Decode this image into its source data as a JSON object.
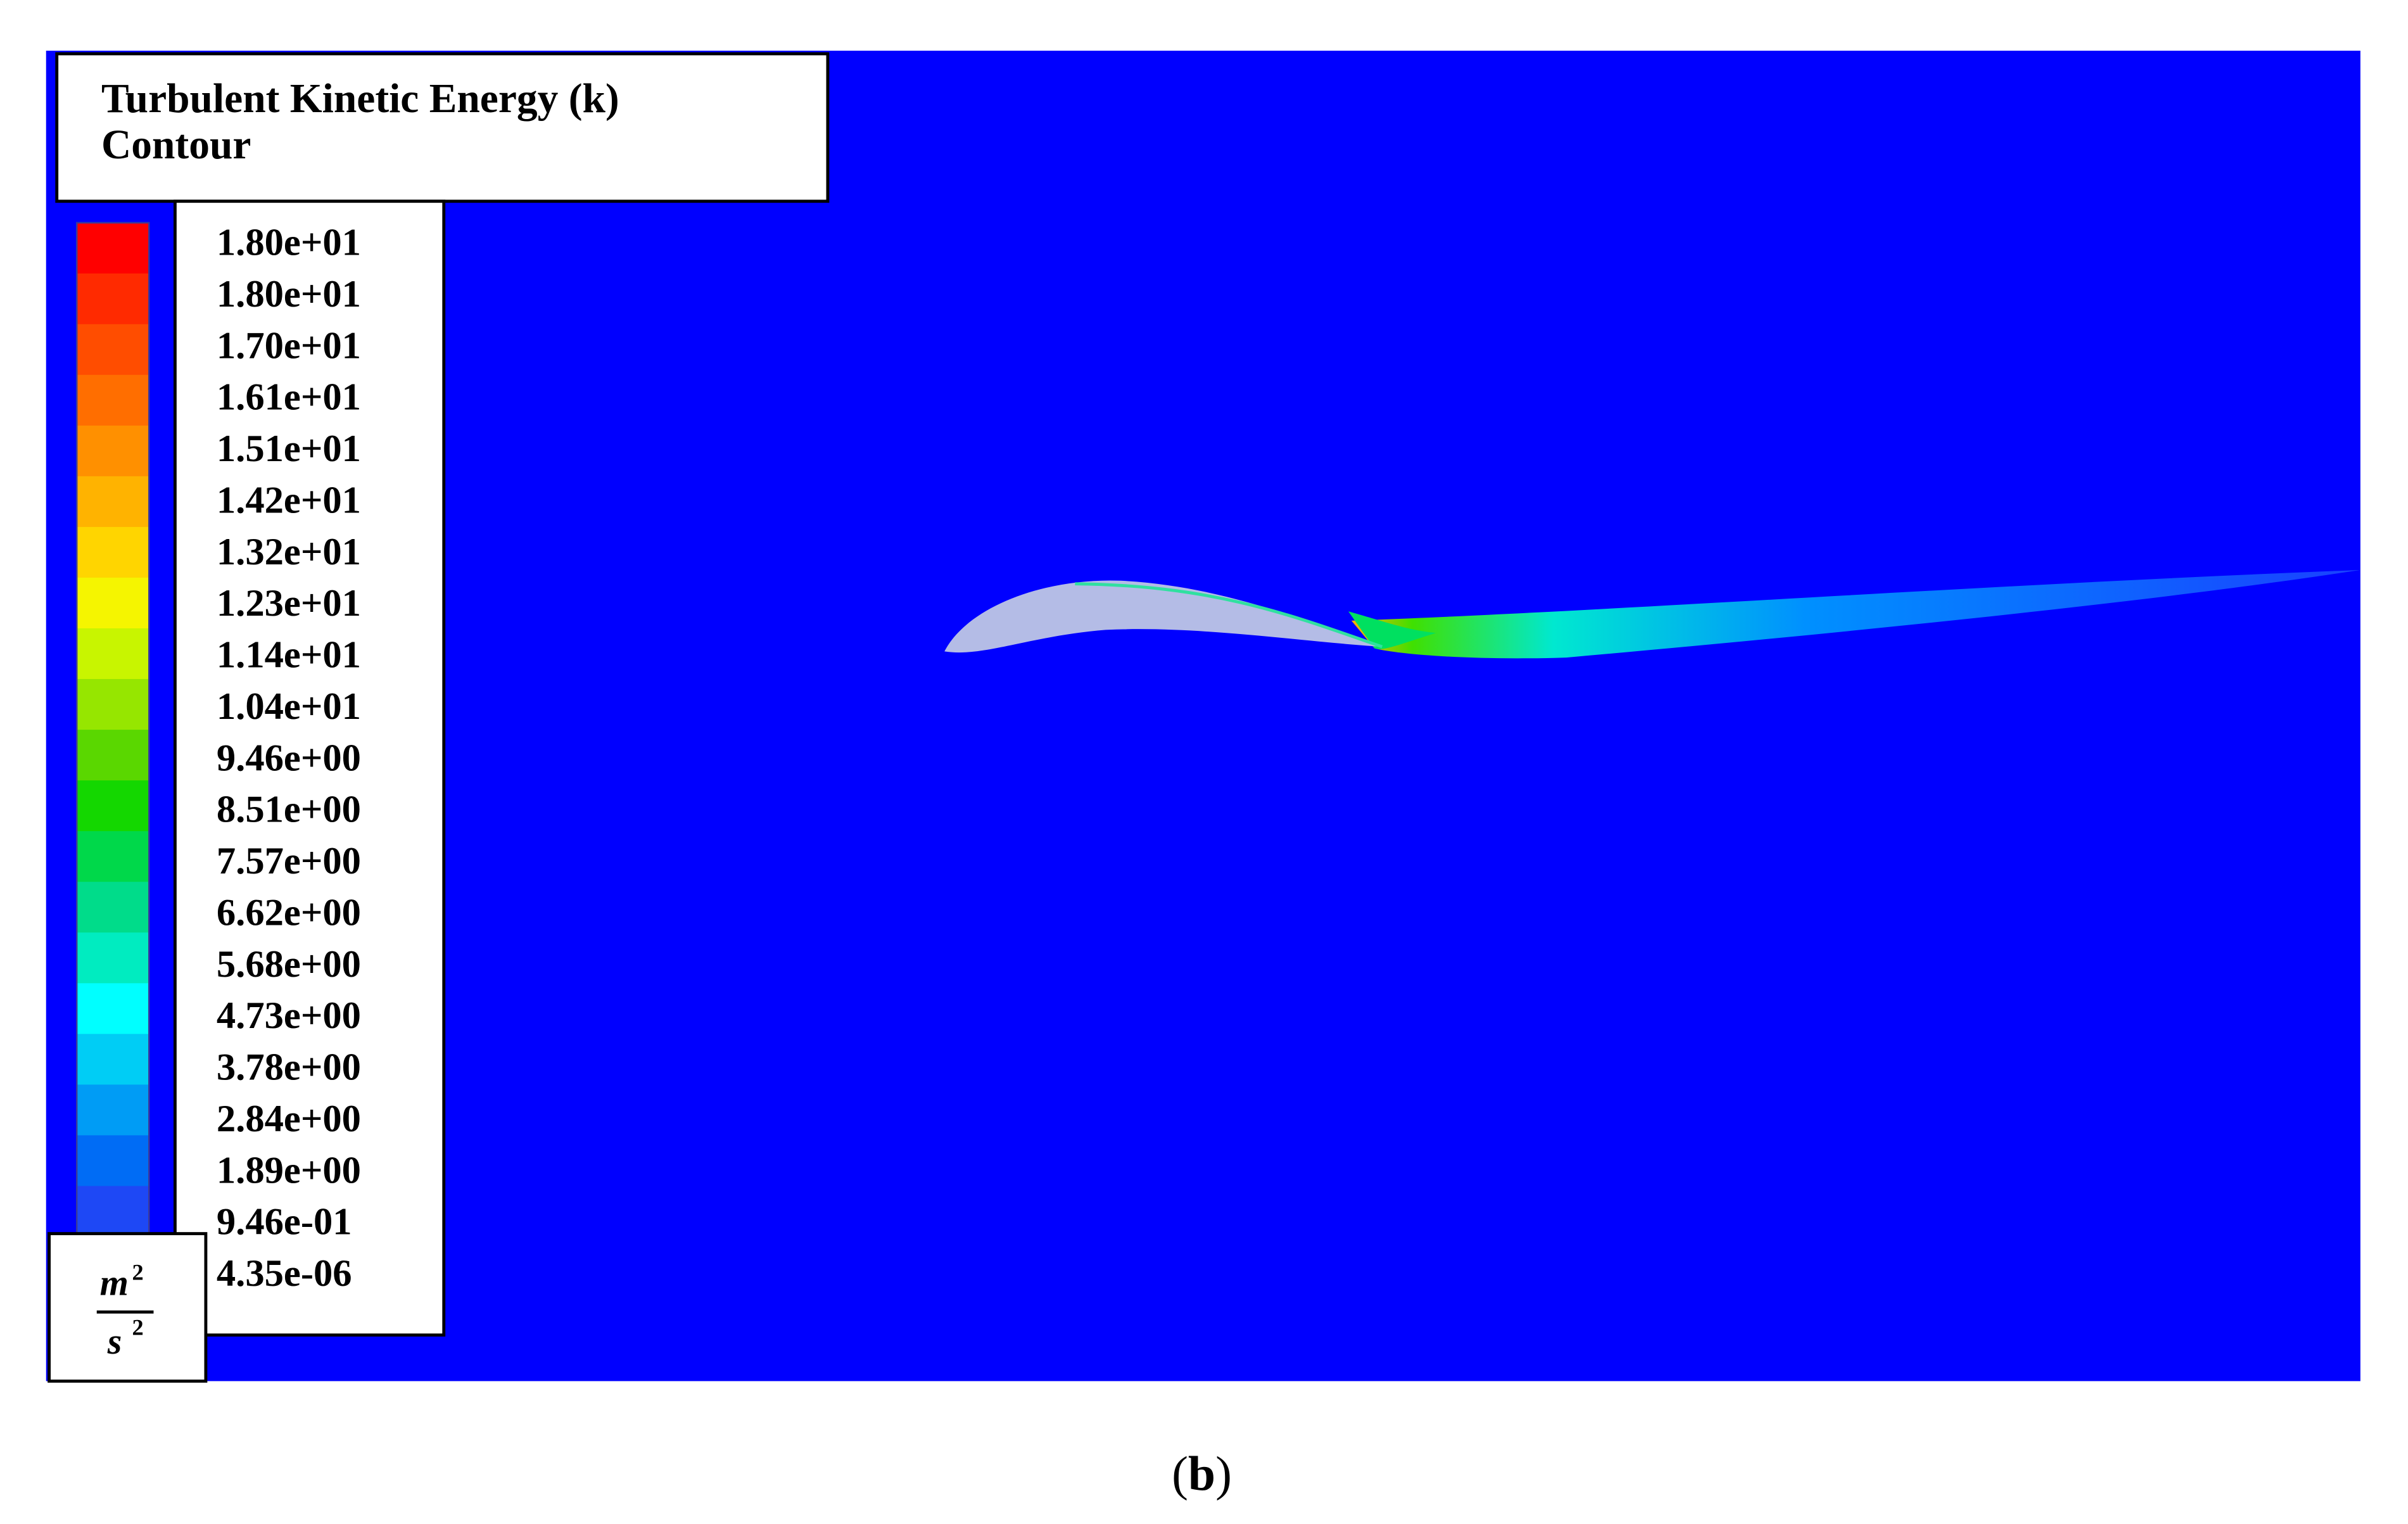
{
  "title_lines": [
    "Turbulent Kinetic Energy (k)",
    "Contour"
  ],
  "legend": {
    "labels": [
      "1.80e+01",
      "1.80e+01",
      "1.70e+01",
      "1.61e+01",
      "1.51e+01",
      "1.42e+01",
      "1.32e+01",
      "1.23e+01",
      "1.14e+01",
      "1.04e+01",
      "9.46e+00",
      "8.51e+00",
      "7.57e+00",
      "6.62e+00",
      "5.68e+00",
      "4.73e+00",
      "3.78e+00",
      "2.84e+00",
      "1.89e+00",
      "9.46e-01",
      "4.35e-06"
    ],
    "band_colors": [
      "#ff0000",
      "#ff2a00",
      "#ff4d00",
      "#ff6e00",
      "#ff9000",
      "#ffb300",
      "#ffd500",
      "#f5f500",
      "#c8f500",
      "#96e600",
      "#5ad700",
      "#14d700",
      "#00d84a",
      "#00dc8a",
      "#00ecc0",
      "#00ffff",
      "#00cdf5",
      "#009cf5",
      "#006cf5",
      "#1e48f5"
    ]
  },
  "unit": {
    "numerator": "m",
    "denominator": "s",
    "exponent": "2"
  },
  "caption": {
    "open": "(",
    "letter": "b",
    "close": ")"
  }
}
